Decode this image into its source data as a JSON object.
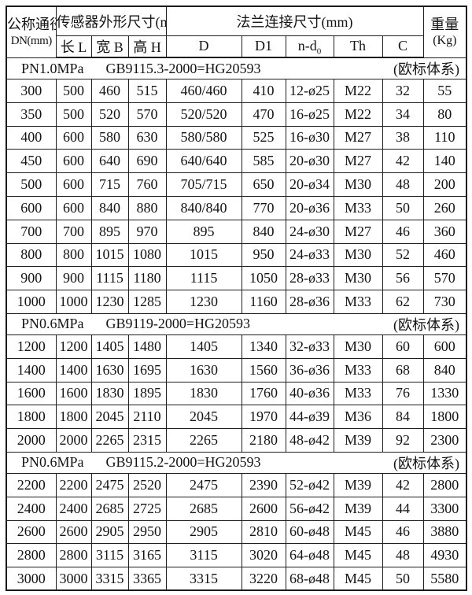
{
  "table": {
    "header": {
      "dn_line1": "公称通径",
      "dn_line2": "DN(mm)",
      "sensor_group": "传感器外形尺寸(mm)",
      "sensor_cols": [
        "长 L",
        "宽 B",
        "高 H"
      ],
      "flange_group": "法兰连接尺寸(mm)",
      "flange_col_d": "D",
      "flange_col_d1": "D1",
      "flange_col_nd": {
        "text": "n-d",
        "sub": "0"
      },
      "flange_col_th": "Th",
      "flange_col_c": "C",
      "weight_line1": "重量",
      "weight_line2": "(Kg)"
    },
    "column_keys": [
      "dn",
      "length-l",
      "width-b",
      "height-h",
      "d",
      "d1",
      "n-d0",
      "th",
      "c",
      "weight"
    ],
    "sections": [
      {
        "pressure": "PN1.0MPa",
        "standard": "GB9115.3-2000=HG20593",
        "note": "(欧标体系)",
        "rows": [
          [
            "300",
            "500",
            "460",
            "515",
            "460/460",
            "410",
            "12-ø25",
            "M22",
            "32",
            "55"
          ],
          [
            "350",
            "500",
            "520",
            "570",
            "520/520",
            "470",
            "16-ø25",
            "M22",
            "34",
            "80"
          ],
          [
            "400",
            "600",
            "580",
            "630",
            "580/580",
            "525",
            "16-ø30",
            "M27",
            "38",
            "110"
          ],
          [
            "450",
            "600",
            "640",
            "690",
            "640/640",
            "585",
            "20-ø30",
            "M27",
            "42",
            "140"
          ],
          [
            "500",
            "600",
            "715",
            "760",
            "705/715",
            "650",
            "20-ø34",
            "M30",
            "48",
            "200"
          ],
          [
            "600",
            "600",
            "840",
            "880",
            "840/840",
            "770",
            "20-ø36",
            "M33",
            "50",
            "260"
          ],
          [
            "700",
            "700",
            "895",
            "970",
            "895",
            "840",
            "24-ø30",
            "M27",
            "46",
            "360"
          ],
          [
            "800",
            "800",
            "1015",
            "1080",
            "1015",
            "950",
            "24-ø33",
            "M30",
            "52",
            "460"
          ],
          [
            "900",
            "900",
            "1115",
            "1180",
            "1115",
            "1050",
            "28-ø33",
            "M30",
            "56",
            "570"
          ],
          [
            "1000",
            "1000",
            "1230",
            "1285",
            "1230",
            "1160",
            "28-ø36",
            "M33",
            "62",
            "730"
          ]
        ]
      },
      {
        "pressure": "PN0.6MPa",
        "standard": "GB9119-2000=HG20593",
        "note": "(欧标体系)",
        "rows": [
          [
            "1200",
            "1200",
            "1405",
            "1480",
            "1405",
            "1340",
            "32-ø33",
            "M30",
            "60",
            "600"
          ],
          [
            "1400",
            "1400",
            "1630",
            "1695",
            "1630",
            "1560",
            "36-ø36",
            "M33",
            "68",
            "840"
          ],
          [
            "1600",
            "1600",
            "1830",
            "1895",
            "1830",
            "1760",
            "40-ø36",
            "M33",
            "76",
            "1330"
          ],
          [
            "1800",
            "1800",
            "2045",
            "2110",
            "2045",
            "1970",
            "44-ø39",
            "M36",
            "84",
            "1800"
          ],
          [
            "2000",
            "2000",
            "2265",
            "2315",
            "2265",
            "2180",
            "48-ø42",
            "M39",
            "92",
            "2300"
          ]
        ]
      },
      {
        "pressure": "PN0.6MPa",
        "standard": "GB9115.2-2000=HG20593",
        "note": "(欧标体系)",
        "rows": [
          [
            "2200",
            "2200",
            "2475",
            "2520",
            "2475",
            "2390",
            "52-ø42",
            "M39",
            "42",
            "2800"
          ],
          [
            "2400",
            "2400",
            "2685",
            "2725",
            "2685",
            "2600",
            "56-ø42",
            "M39",
            "44",
            "3300"
          ],
          [
            "2600",
            "2600",
            "2905",
            "2950",
            "2905",
            "2810",
            "60-ø48",
            "M45",
            "46",
            "3880"
          ],
          [
            "2800",
            "2800",
            "3115",
            "3165",
            "3115",
            "3020",
            "64-ø48",
            "M45",
            "48",
            "4930"
          ],
          [
            "3000",
            "3000",
            "3315",
            "3365",
            "3315",
            "3220",
            "68-ø48",
            "M45",
            "50",
            "5580"
          ]
        ]
      }
    ]
  }
}
